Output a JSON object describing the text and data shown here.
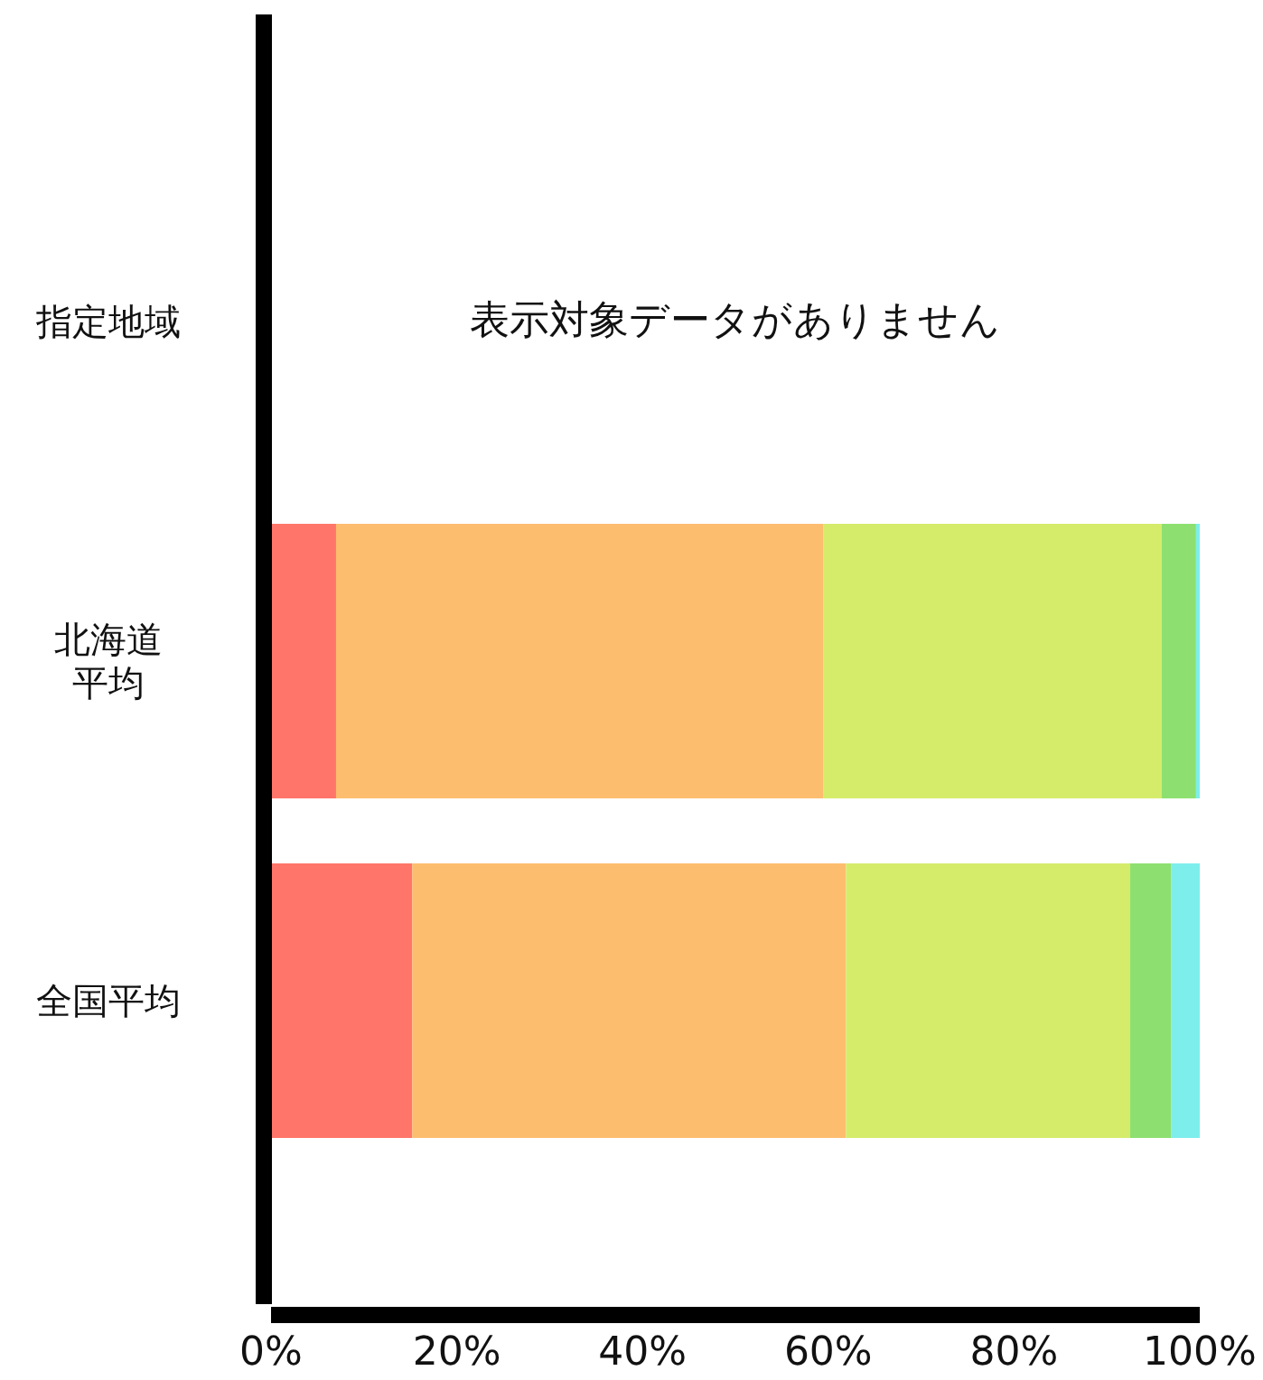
{
  "chart_data": {
    "type": "bar",
    "orientation": "horizontal",
    "stacked": true,
    "categories": [
      "指定地域",
      "北海道平均",
      "全国平均"
    ],
    "series": [
      {
        "color": "#ff7569",
        "values": [
          null,
          7.0,
          15.2
        ]
      },
      {
        "color": "#fdbd6e",
        "values": [
          null,
          52.5,
          46.7
        ]
      },
      {
        "color": "#d5ec6b",
        "values": [
          null,
          36.4,
          30.6
        ]
      },
      {
        "color": "#8de070",
        "values": [
          null,
          3.7,
          4.4
        ]
      },
      {
        "color": "#7eeeec",
        "values": [
          null,
          0.4,
          3.1
        ]
      }
    ],
    "xlim": [
      0,
      100
    ],
    "xticks": [
      {
        "value": 0,
        "label": "0%"
      },
      {
        "value": 20,
        "label": "20%"
      },
      {
        "value": 40,
        "label": "40%"
      },
      {
        "value": 60,
        "label": "60%"
      },
      {
        "value": 80,
        "label": "80%"
      },
      {
        "value": 100,
        "label": "100%"
      }
    ],
    "annotations": [
      "表示対象データがありません"
    ]
  }
}
